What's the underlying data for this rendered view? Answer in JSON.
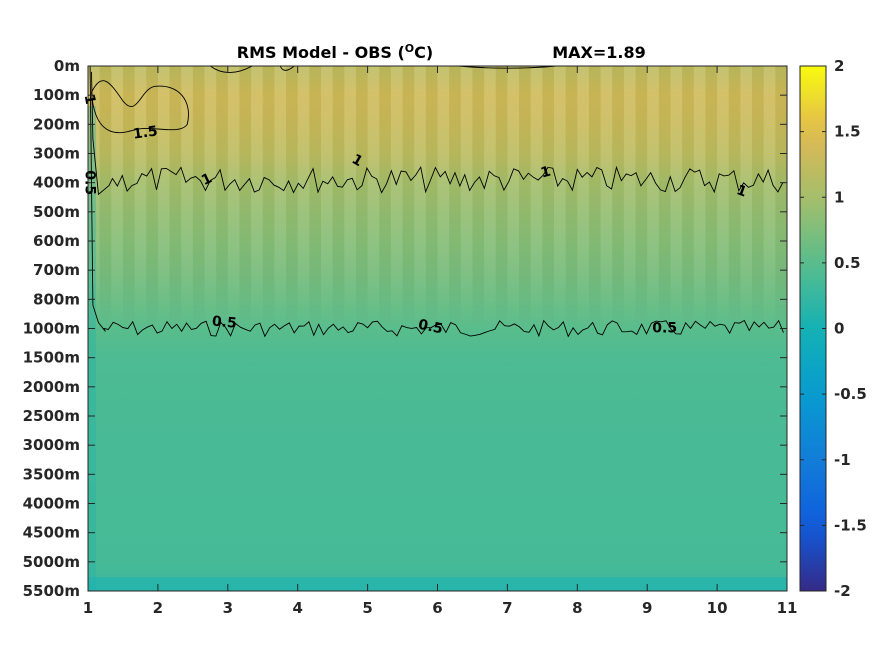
{
  "chart_data": {
    "type": "heatmap",
    "title": "RMS Model - OBS (",
    "title_unit_sup": "O",
    "title_unit": "C)",
    "max_label": "MAX=1.89",
    "x": {
      "ticks": [
        1,
        2,
        3,
        4,
        5,
        6,
        7,
        8,
        9,
        10,
        11
      ],
      "range": [
        1,
        11
      ]
    },
    "y": {
      "tick_labels": [
        "0m",
        "100m",
        "200m",
        "300m",
        "400m",
        "500m",
        "600m",
        "700m",
        "800m",
        "1000m",
        "1500m",
        "2000m",
        "2500m",
        "3000m",
        "3500m",
        "4000m",
        "4500m",
        "5000m",
        "5500m"
      ],
      "reversed": true
    },
    "colorbar": {
      "ticks": [
        2,
        1.5,
        1,
        0.5,
        0,
        -0.5,
        -1,
        -1.5,
        -2
      ],
      "tick_labels": [
        "2",
        "1.5",
        "1",
        "0.5",
        "0",
        "-0.5",
        "-1",
        "-1.5",
        "-2"
      ],
      "range": [
        -2,
        2
      ],
      "colormap": "parula"
    },
    "depth_profile": [
      {
        "level": 0,
        "value": 1.2
      },
      {
        "level": 1,
        "value": 1.35
      },
      {
        "level": 2,
        "value": 1.3
      },
      {
        "level": 3,
        "value": 1.2
      },
      {
        "level": 4,
        "value": 1.0
      },
      {
        "level": 5,
        "value": 0.9
      },
      {
        "level": 6,
        "value": 0.8
      },
      {
        "level": 7,
        "value": 0.72
      },
      {
        "level": 8,
        "value": 0.62
      },
      {
        "level": 9,
        "value": 0.5
      },
      {
        "level": 10,
        "value": 0.42
      },
      {
        "level": 11,
        "value": 0.4
      },
      {
        "level": 12,
        "value": 0.39
      },
      {
        "level": 13,
        "value": 0.38
      },
      {
        "level": 14,
        "value": 0.38
      },
      {
        "level": 15,
        "value": 0.37
      },
      {
        "level": 16,
        "value": 0.37
      },
      {
        "level": 17,
        "value": 0.36
      },
      {
        "level": 18,
        "value": 0.3
      }
    ],
    "contours": [
      {
        "level": 0.5,
        "label": "0.5"
      },
      {
        "level": 1,
        "label": "1"
      },
      {
        "level": 1.5,
        "label": "1.5"
      }
    ],
    "contour_labels": [
      {
        "text": "1",
        "x": 1.02,
        "y": 1.15,
        "angle": 80
      },
      {
        "text": "1.5",
        "x": 1.82,
        "y": 2.3,
        "angle": -8
      },
      {
        "text": "0.5",
        "x": 1.02,
        "y": 4.0,
        "angle": 90
      },
      {
        "text": "1",
        "x": 2.7,
        "y": 3.9,
        "angle": -25
      },
      {
        "text": "1",
        "x": 4.85,
        "y": 3.25,
        "angle": 30
      },
      {
        "text": "1",
        "x": 7.55,
        "y": 3.65,
        "angle": -15
      },
      {
        "text": "1",
        "x": 10.35,
        "y": 4.3,
        "angle": 20
      },
      {
        "text": "0.5",
        "x": 2.95,
        "y": 8.8,
        "angle": 5
      },
      {
        "text": "0.5",
        "x": 5.9,
        "y": 8.95,
        "angle": 12
      },
      {
        "text": "0.5",
        "x": 9.25,
        "y": 9.0,
        "angle": 0
      }
    ]
  }
}
